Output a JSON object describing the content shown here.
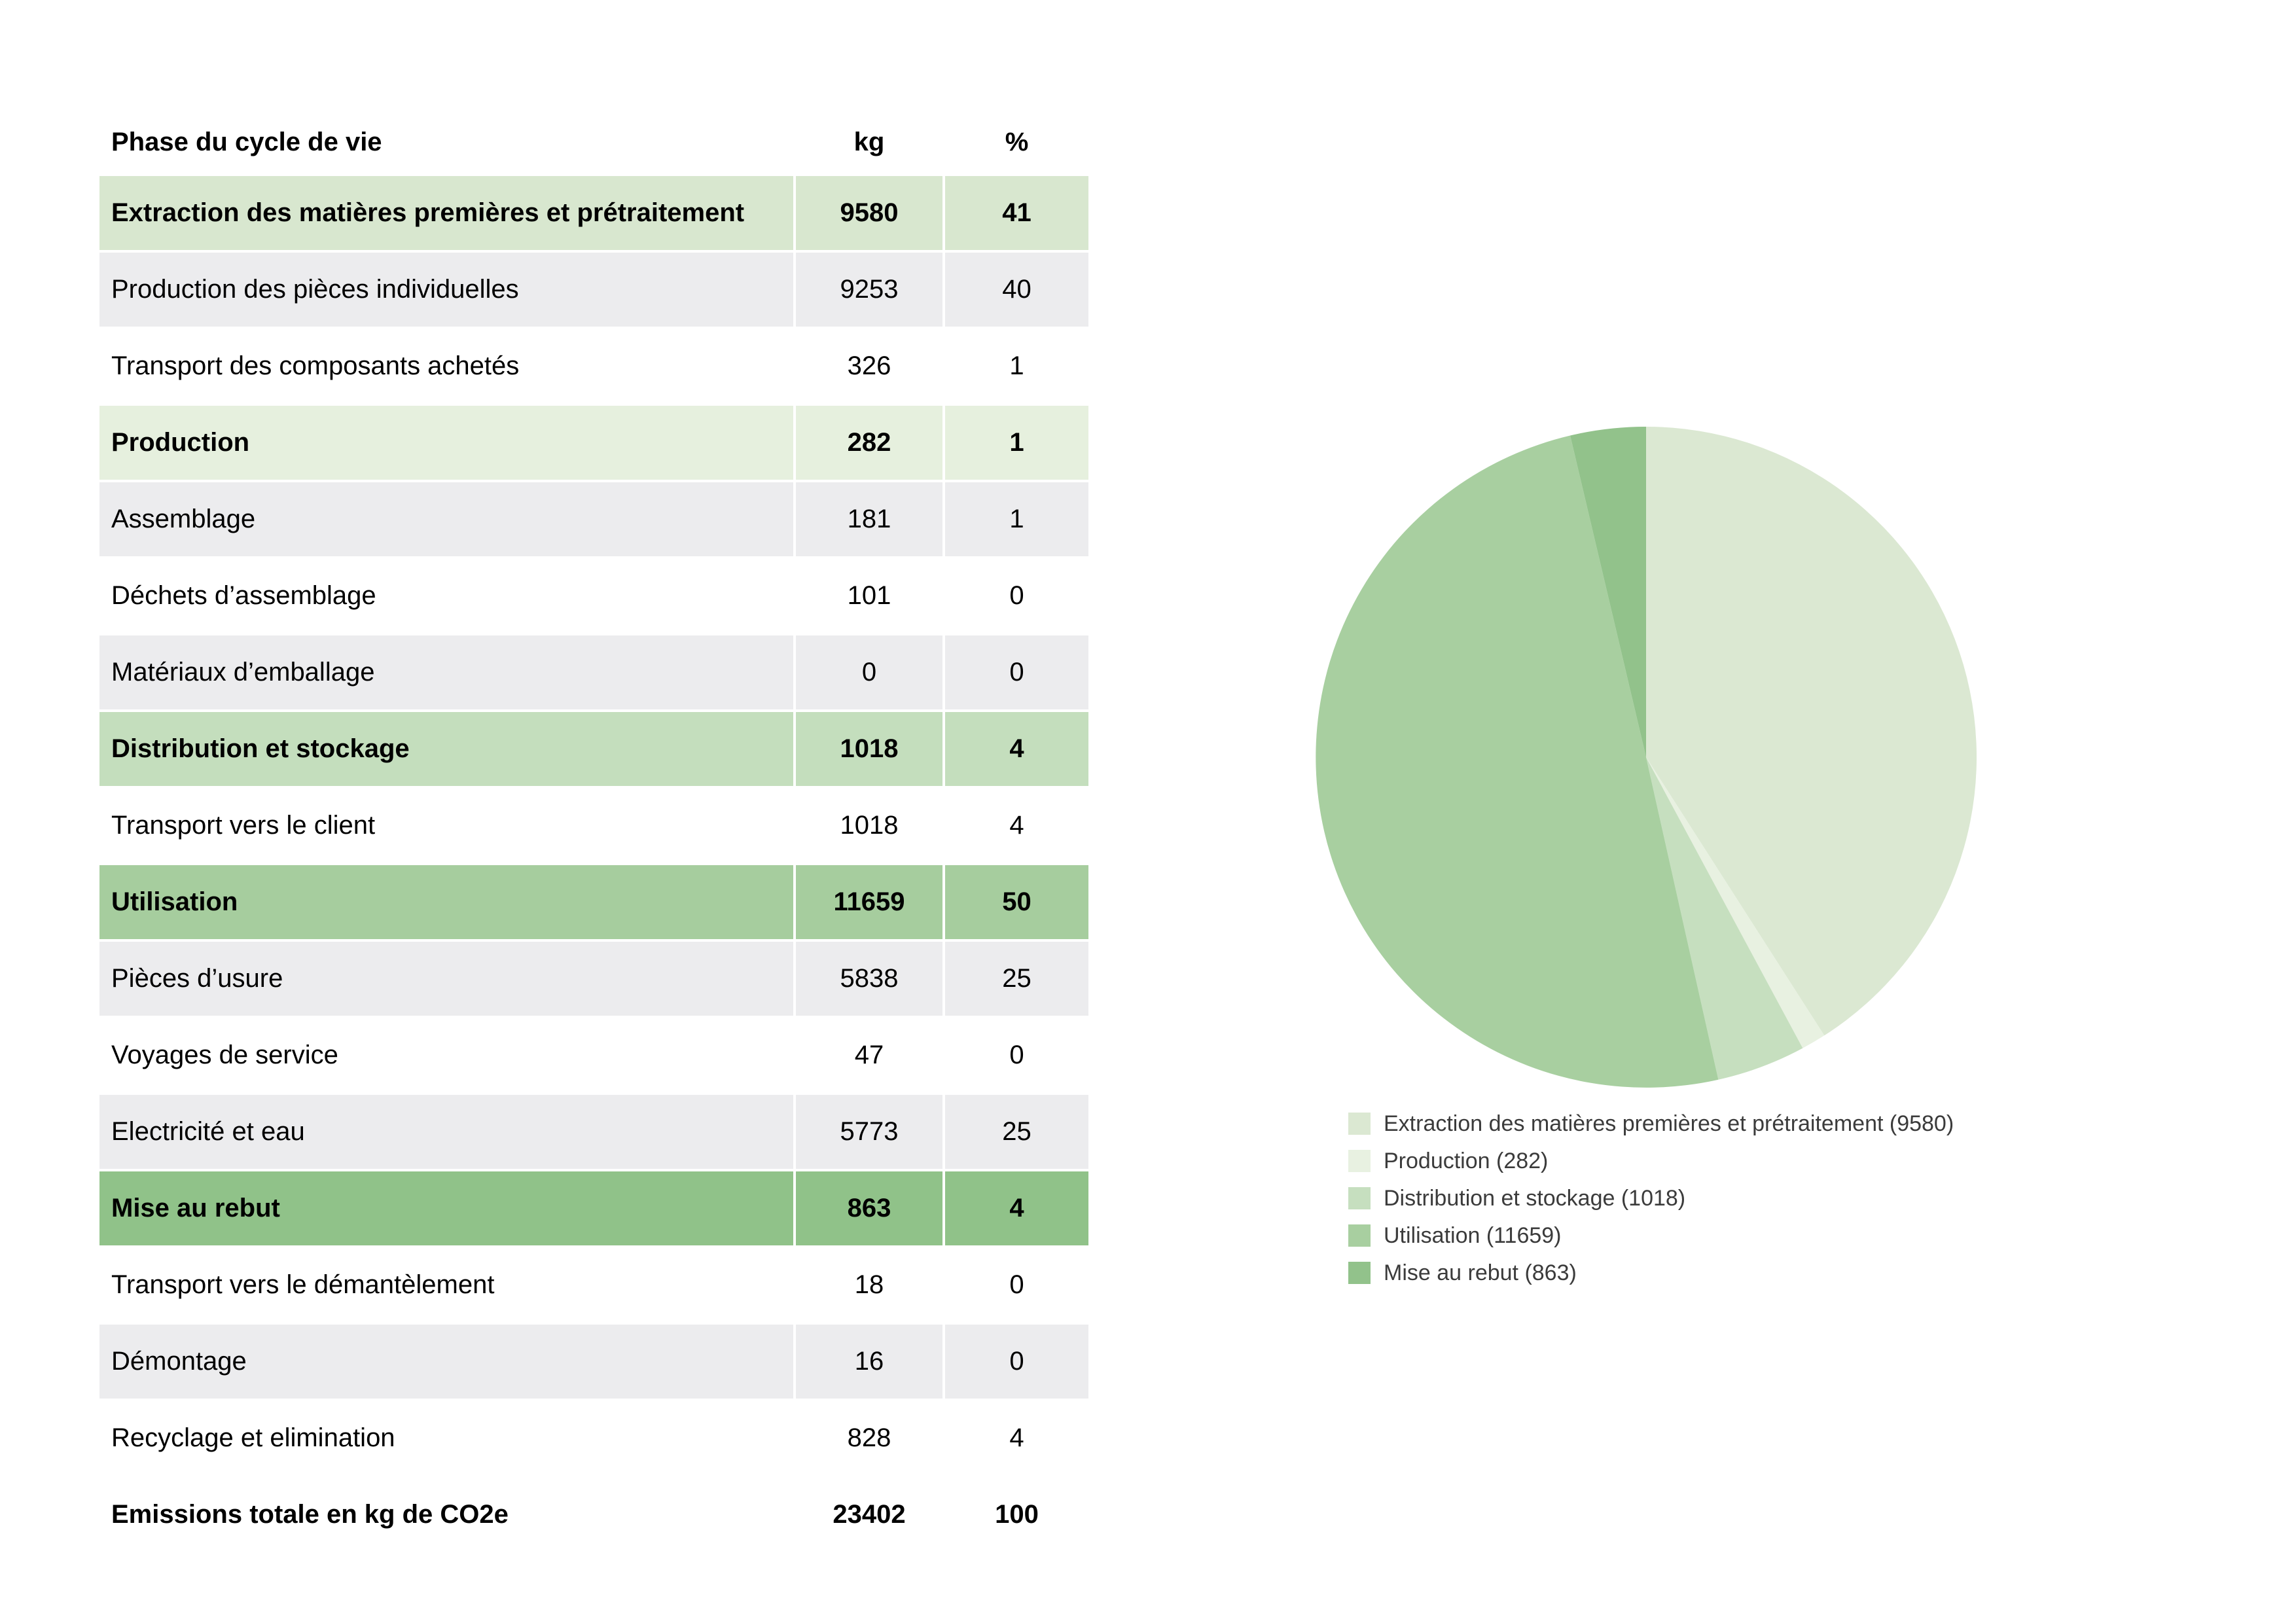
{
  "page": {
    "background": "#ffffff"
  },
  "table": {
    "header": {
      "phase": "Phase du cycle de vie",
      "kg": "kg",
      "pct": "%"
    },
    "rows": [
      {
        "label": "Extraction des matières premières et prétraitement",
        "kg": "9580",
        "pct": "41",
        "variant": "extraction",
        "bold": true
      },
      {
        "label": "Production des pièces individuelles",
        "kg": "9253",
        "pct": "40",
        "variant": "alt",
        "bold": false
      },
      {
        "label": "Transport des composants achetés",
        "kg": "326",
        "pct": "1",
        "variant": "plain",
        "bold": false
      },
      {
        "label": "Production",
        "kg": "282",
        "pct": "1",
        "variant": "production",
        "bold": true
      },
      {
        "label": "Assemblage",
        "kg": "181",
        "pct": "1",
        "variant": "alt",
        "bold": false
      },
      {
        "label": "Déchets d’assemblage",
        "kg": "101",
        "pct": "0",
        "variant": "plain",
        "bold": false
      },
      {
        "label": "Matériaux d’emballage",
        "kg": "0",
        "pct": "0",
        "variant": "alt",
        "bold": false
      },
      {
        "label": "Distribution et stockage",
        "kg": "1018",
        "pct": "4",
        "variant": "distribution",
        "bold": true
      },
      {
        "label": "Transport vers le client",
        "kg": "1018",
        "pct": "4",
        "variant": "plain",
        "bold": false
      },
      {
        "label": "Utilisation",
        "kg": "11659",
        "pct": "50",
        "variant": "utilisation",
        "bold": true
      },
      {
        "label": "Pièces d’usure",
        "kg": "5838",
        "pct": "25",
        "variant": "alt",
        "bold": false
      },
      {
        "label": "Voyages de service",
        "kg": "47",
        "pct": "0",
        "variant": "plain",
        "bold": false
      },
      {
        "label": "Electricité et eau",
        "kg": "5773",
        "pct": "25",
        "variant": "alt",
        "bold": false
      },
      {
        "label": "Mise au rebut",
        "kg": "863",
        "pct": "4",
        "variant": "mise_au_rebut",
        "bold": true
      },
      {
        "label": "Transport vers le démantèlement",
        "kg": "18",
        "pct": "0",
        "variant": "plain",
        "bold": false
      },
      {
        "label": "Démontage",
        "kg": "16",
        "pct": "0",
        "variant": "alt",
        "bold": false
      },
      {
        "label": "Recyclage et elimination",
        "kg": "828",
        "pct": "4",
        "variant": "plain",
        "bold": false
      },
      {
        "label": "Emissions totale en kg de CO2e",
        "kg": "23402",
        "pct": "100",
        "variant": "total",
        "bold": true
      }
    ]
  },
  "chart_data": {
    "type": "pie",
    "title": "",
    "categories": [
      "Extraction des matières premières et prétraitement",
      "Production",
      "Distribution et stockage",
      "Utilisation",
      "Mise au rebut"
    ],
    "values": [
      9580,
      282,
      1018,
      11659,
      863
    ],
    "total": 23402,
    "percentages": [
      41,
      1,
      4,
      50,
      4
    ],
    "unit": "kg CO2e",
    "colors": [
      "#dbe8d2",
      "#e8f1e1",
      "#c6dfbf",
      "#a8cfa0",
      "#92c28b"
    ],
    "start_angle_deg": 0,
    "direction": "clockwise",
    "legend": [
      "Extraction des matières premières et prétraitement (9580)",
      "Production (282)",
      "Distribution et stockage (1018)",
      "Utilisation (11659)",
      "Mise au rebut (863)"
    ],
    "legend_position": "bottom-left"
  },
  "styles": {
    "row_colors": {
      "extraction": "#d8e7cf",
      "production": "#e6f0de",
      "distribution": "#c4debd",
      "utilisation": "#a6cd9e",
      "mise_au_rebut": "#90c289",
      "alt": "#ececee",
      "plain": "#ffffff",
      "total": "#ffffff"
    },
    "legend_text_color": "#3b3b3b"
  }
}
